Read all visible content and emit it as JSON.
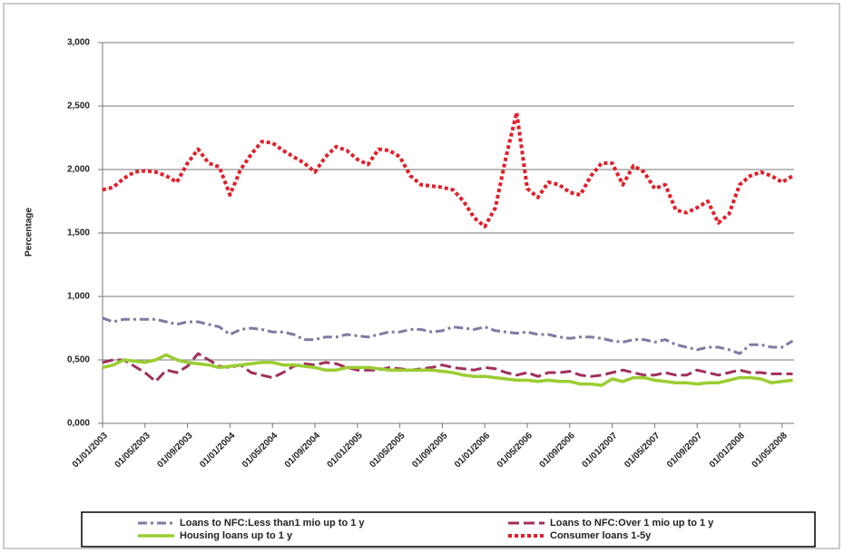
{
  "chart_data": {
    "type": "line",
    "y_label": "Percentage",
    "categories": [
      "01/01/2003",
      null,
      null,
      null,
      "01/05/2003",
      null,
      null,
      null,
      "01/09/2003",
      null,
      null,
      null,
      "01/01/2004",
      null,
      null,
      null,
      "01/05/2004",
      null,
      null,
      null,
      "01/09/2004",
      null,
      null,
      null,
      "01/01/2005",
      null,
      null,
      null,
      "01/05/2005",
      null,
      null,
      null,
      "01/09/2005",
      null,
      null,
      null,
      "01/01/2006",
      null,
      null,
      null,
      "01/05/2006",
      null,
      null,
      null,
      "01/09/2006",
      null,
      null,
      null,
      "01/01/2007",
      null,
      null,
      null,
      "01/05/2007",
      null,
      null,
      null,
      "01/09/2007",
      null,
      null,
      null,
      "01/01/2008",
      null,
      null,
      null,
      "01/05/2008",
      null
    ],
    "series": [
      {
        "name": "Loans to NFC:Less than1 mio up to 1 y",
        "color": "#7c7ca4",
        "values": [
          0.83,
          0.8,
          0.82,
          0.82,
          0.82,
          0.82,
          0.8,
          0.78,
          0.8,
          0.8,
          0.78,
          0.76,
          0.7,
          0.74,
          0.75,
          0.74,
          0.72,
          0.72,
          0.7,
          0.66,
          0.66,
          0.68,
          0.68,
          0.7,
          0.69,
          0.68,
          0.7,
          0.72,
          0.72,
          0.74,
          0.74,
          0.72,
          0.73,
          0.76,
          0.75,
          0.74,
          0.76,
          0.73,
          0.72,
          0.71,
          0.72,
          0.7,
          0.7,
          0.68,
          0.67,
          0.68,
          0.68,
          0.67,
          0.65,
          0.64,
          0.66,
          0.66,
          0.64,
          0.66,
          0.62,
          0.6,
          0.58,
          0.6,
          0.6,
          0.58,
          0.55,
          0.62,
          0.62,
          0.6,
          0.6,
          0.65
        ]
      },
      {
        "name": "Loans to NFC:Over 1 mio up to 1 y",
        "color": "#a0305c",
        "values": [
          0.48,
          0.5,
          0.5,
          0.45,
          0.4,
          0.33,
          0.42,
          0.4,
          0.45,
          0.55,
          0.5,
          0.45,
          0.44,
          0.46,
          0.4,
          0.38,
          0.36,
          0.4,
          0.45,
          0.47,
          0.46,
          0.48,
          0.47,
          0.44,
          0.42,
          0.42,
          0.42,
          0.44,
          0.43,
          0.42,
          0.43,
          0.44,
          0.46,
          0.44,
          0.43,
          0.42,
          0.44,
          0.43,
          0.4,
          0.38,
          0.4,
          0.37,
          0.4,
          0.4,
          0.41,
          0.38,
          0.37,
          0.38,
          0.4,
          0.42,
          0.4,
          0.38,
          0.38,
          0.4,
          0.38,
          0.38,
          0.42,
          0.4,
          0.38,
          0.4,
          0.42,
          0.4,
          0.4,
          0.39,
          0.39,
          0.39
        ]
      },
      {
        "name": "Housing loans up to 1 y",
        "color": "#9acd32",
        "values": [
          0.44,
          0.46,
          0.5,
          0.49,
          0.48,
          0.5,
          0.54,
          0.5,
          0.48,
          0.47,
          0.46,
          0.44,
          0.45,
          0.46,
          0.47,
          0.48,
          0.48,
          0.46,
          0.46,
          0.45,
          0.44,
          0.42,
          0.42,
          0.44,
          0.44,
          0.44,
          0.43,
          0.42,
          0.42,
          0.42,
          0.42,
          0.42,
          0.41,
          0.4,
          0.38,
          0.37,
          0.37,
          0.36,
          0.35,
          0.34,
          0.34,
          0.33,
          0.34,
          0.33,
          0.33,
          0.31,
          0.31,
          0.3,
          0.35,
          0.33,
          0.36,
          0.36,
          0.34,
          0.33,
          0.32,
          0.32,
          0.31,
          0.32,
          0.32,
          0.34,
          0.36,
          0.36,
          0.35,
          0.32,
          0.33,
          0.34
        ]
      },
      {
        "name": "Consumer loans 1-5y",
        "color": "#e0202a",
        "values": [
          1.84,
          1.86,
          1.93,
          1.98,
          1.99,
          1.98,
          1.95,
          1.9,
          2.05,
          2.16,
          2.05,
          2.02,
          1.8,
          2.0,
          2.12,
          2.22,
          2.21,
          2.15,
          2.1,
          2.05,
          1.98,
          2.1,
          2.18,
          2.15,
          2.08,
          2.04,
          2.16,
          2.15,
          2.1,
          1.95,
          1.88,
          1.87,
          1.86,
          1.84,
          1.75,
          1.62,
          1.55,
          1.7,
          2.1,
          2.45,
          1.85,
          1.78,
          1.9,
          1.88,
          1.82,
          1.8,
          1.95,
          2.05,
          2.05,
          1.88,
          2.03,
          1.98,
          1.85,
          1.88,
          1.68,
          1.66,
          1.7,
          1.75,
          1.58,
          1.65,
          1.88,
          1.95,
          1.98,
          1.95,
          1.9,
          1.95
        ]
      }
    ],
    "ylim": [
      0,
      3
    ],
    "yticks": [
      {
        "value": 0,
        "label": "0,000"
      },
      {
        "value": 0.5,
        "label": "0,500"
      },
      {
        "value": 1,
        "label": "1,000"
      },
      {
        "value": 1.5,
        "label": "1,500"
      },
      {
        "value": 2,
        "label": "2,000"
      },
      {
        "value": 2.5,
        "label": "2,500"
      },
      {
        "value": 3,
        "label": "3,000"
      }
    ],
    "grid": true
  }
}
